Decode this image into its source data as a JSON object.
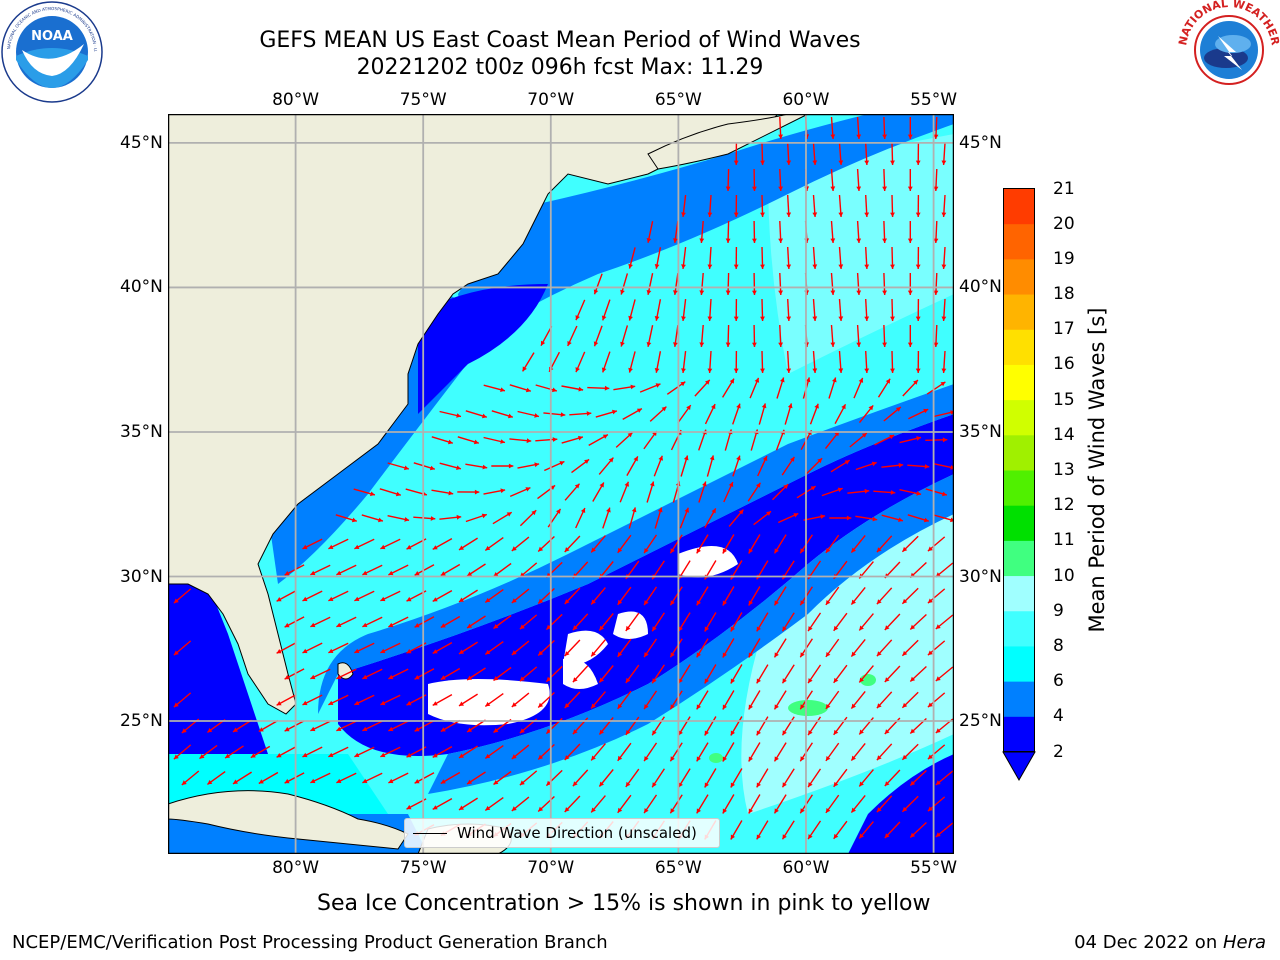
{
  "header": {
    "title_line1": "GEFS MEAN US East Coast Mean Period of Wind Waves",
    "title_line2": "20221202 t00z 096h fcst   Max: 11.29"
  },
  "logos": {
    "left": "noaa-logo",
    "right": "national-weather-service-logo",
    "left_text": "NATIONAL OCEANIC AND ATMOSPHERIC ADMINISTRATION · U.S. DEPARTMENT OF COMMERCE",
    "left_center": "NOAA",
    "right_text": "NATIONAL WEATHER SERVICE"
  },
  "map": {
    "lon_ticks": [
      "80°W",
      "75°W",
      "70°W",
      "65°W",
      "60°W",
      "55°W"
    ],
    "lat_ticks": [
      "45°N",
      "40°N",
      "35°N",
      "30°N",
      "25°N"
    ],
    "lon_values": [
      -80,
      -75,
      -70,
      -65,
      -60,
      -55
    ],
    "lat_values": [
      45,
      40,
      35,
      30,
      25
    ],
    "extent": {
      "lon": [
        -85,
        -54.2
      ],
      "lat": [
        20.4,
        46.0
      ]
    },
    "projection": "plate-carree",
    "grid": true,
    "land_color": "#eeeedc",
    "arrow_color": "#ff0000",
    "legend_label": "Wind Wave Direction (unscaled)"
  },
  "colorbar": {
    "label": "Mean Period of Wind Waves [s]",
    "ticks": [
      "2",
      "4",
      "6",
      "8",
      "9",
      "10",
      "11",
      "12",
      "13",
      "14",
      "15",
      "16",
      "17",
      "18",
      "19",
      "20",
      "21"
    ],
    "colors": [
      "#0000ff",
      "#0080ff",
      "#00ffff",
      "#40ffff",
      "#a0ffff",
      "#40ff80",
      "#00e000",
      "#50f000",
      "#a0f000",
      "#d0ff00",
      "#ffff00",
      "#ffe000",
      "#ffb400",
      "#ff8c00",
      "#ff6400",
      "#ff3c00",
      "#ff0000"
    ],
    "extend_min": true
  },
  "subtitle": "Sea Ice Concentration > 15% is shown in pink to yellow",
  "footer": {
    "left": "NCEP/EMC/Verification Post Processing Product Generation Branch",
    "right_date": "04 Dec 2022 on ",
    "right_host": "Hera"
  }
}
